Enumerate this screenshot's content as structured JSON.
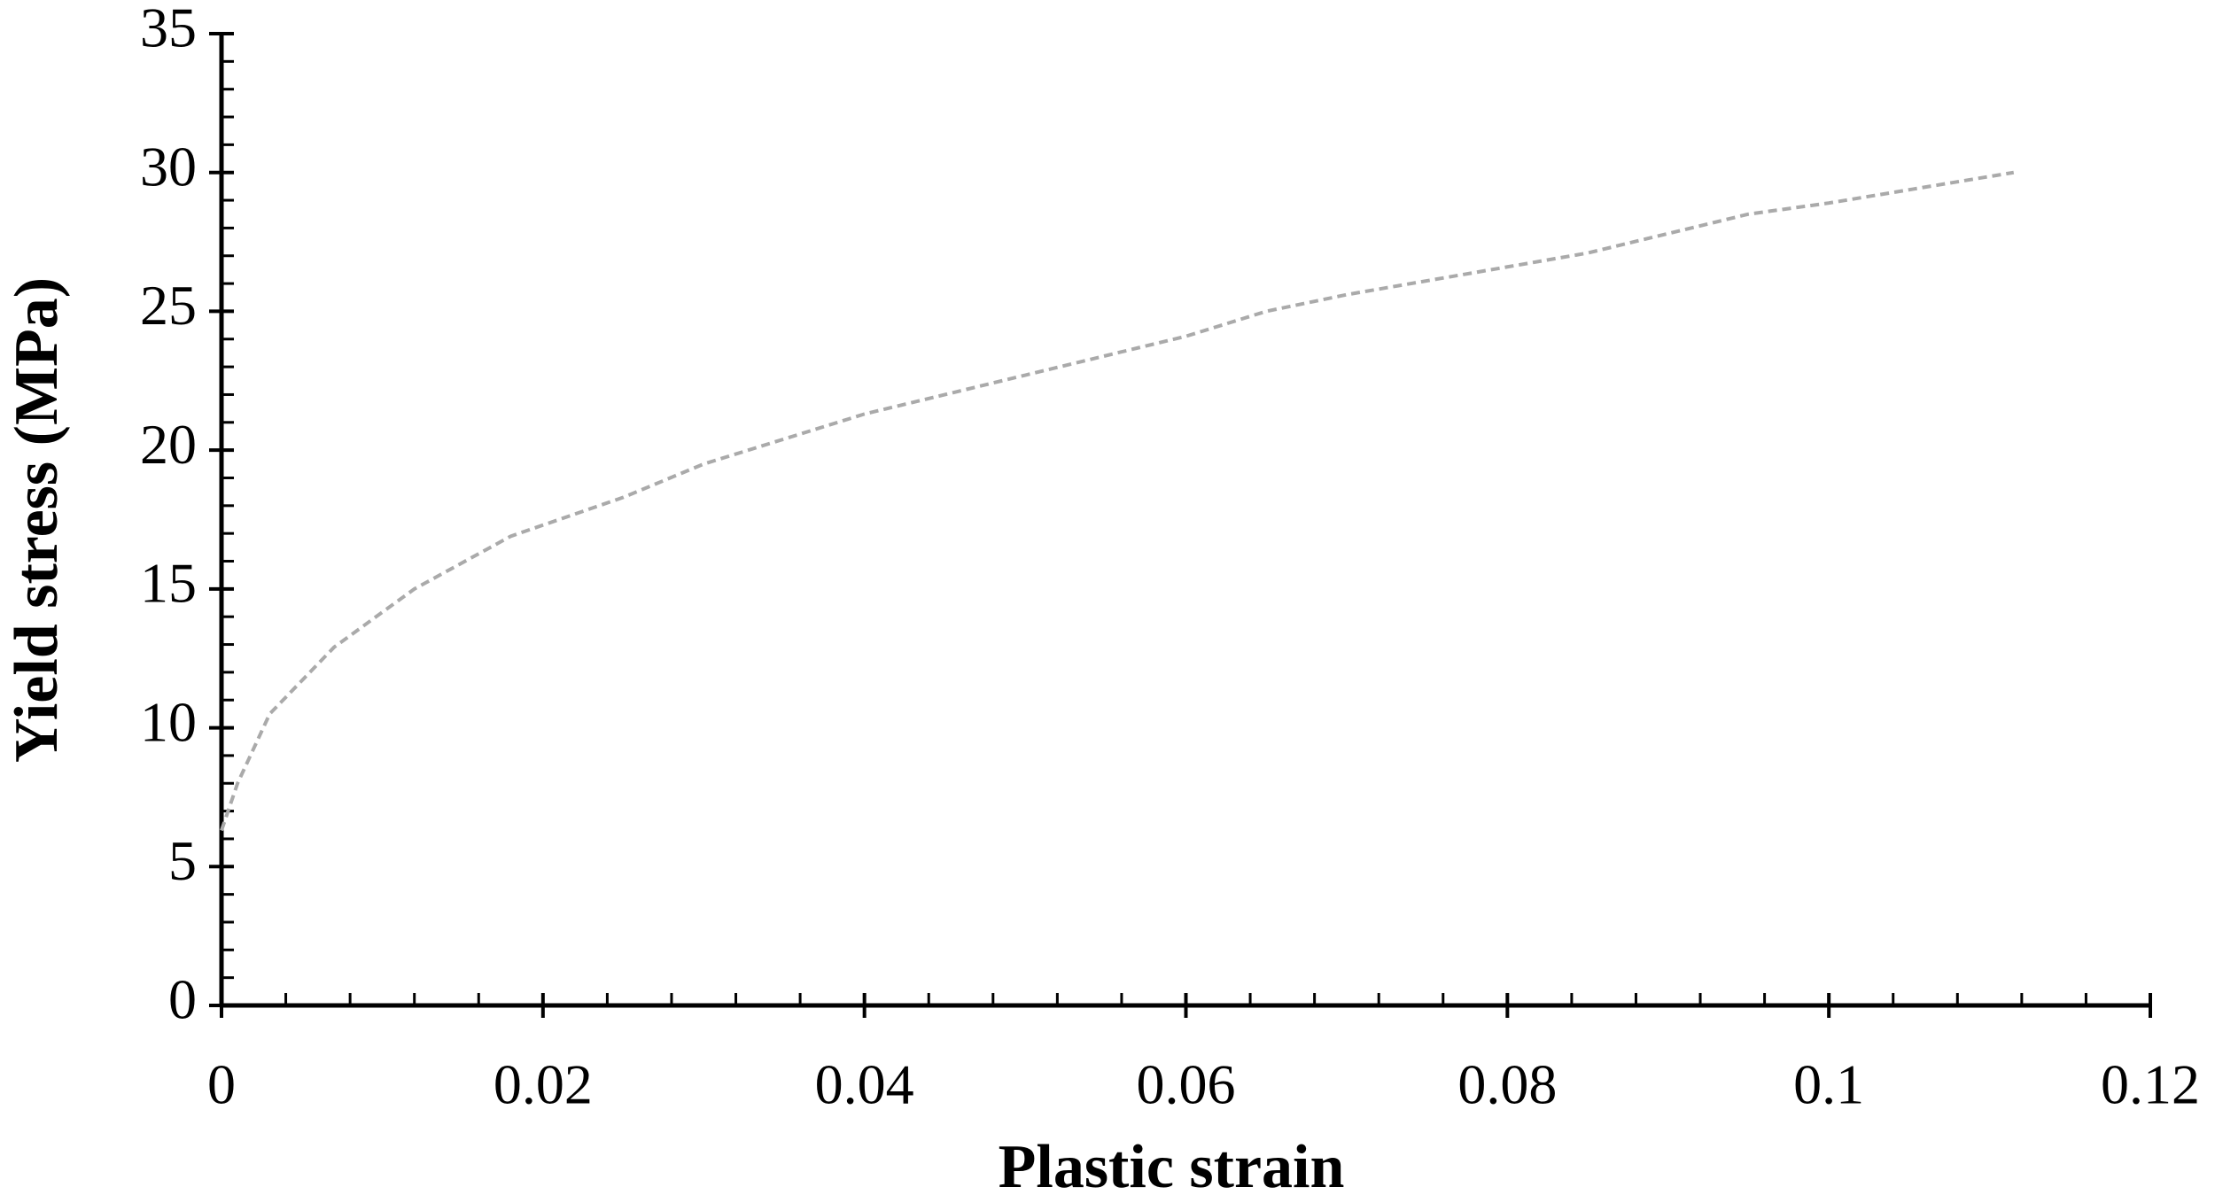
{
  "chart_data": {
    "type": "line",
    "x_label": "Plastic strain",
    "y_label": "Yield stress (MPa)",
    "x": [
      0,
      0.001,
      0.003,
      0.007,
      0.012,
      0.018,
      0.025,
      0.03,
      0.04,
      0.05,
      0.06,
      0.065,
      0.07,
      0.08,
      0.085,
      0.09,
      0.095,
      0.1,
      0.1115
    ],
    "series": [
      {
        "color": "#aaaaaa",
        "values": [
          6.3,
          8,
          10.5,
          12.9,
          15,
          16.9,
          18.3,
          19.5,
          21.3,
          22.7,
          24.1,
          25,
          25.6,
          26.6,
          27.1,
          27.8,
          28.5,
          28.9,
          30
        ]
      }
    ],
    "xlim": [
      0,
      0.12
    ],
    "xticks": [
      0,
      0.02,
      0.04,
      0.06,
      0.08,
      0.1,
      0.12
    ],
    "ylim": [
      0,
      35
    ],
    "yticks": [
      0,
      5,
      10,
      15,
      20,
      25,
      30,
      35
    ],
    "grid": false
  }
}
